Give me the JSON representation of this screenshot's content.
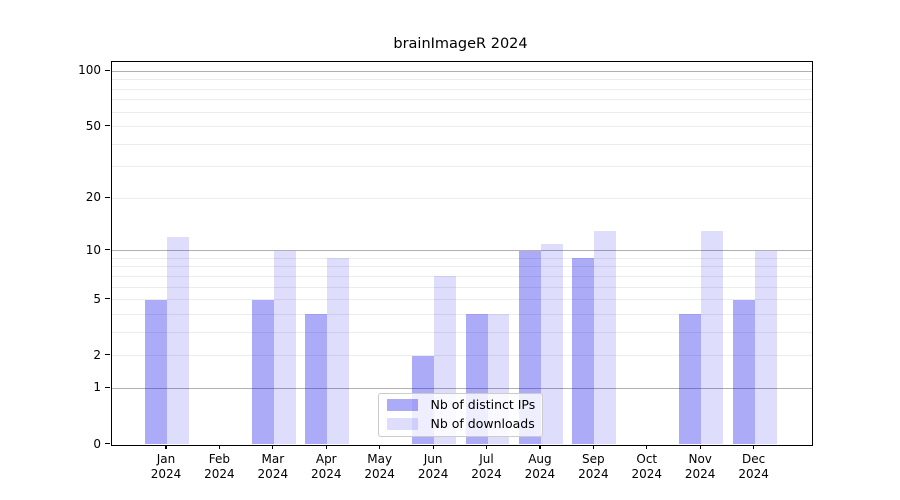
{
  "title": "brainImageR 2024",
  "chart_data": {
    "type": "bar",
    "title": "brainImageR 2024",
    "scale": "log1p",
    "categories": [
      "Jan",
      "Feb",
      "Mar",
      "Apr",
      "May",
      "Jun",
      "Jul",
      "Aug",
      "Sep",
      "Oct",
      "Nov",
      "Dec"
    ],
    "year_label": "2024",
    "series": [
      {
        "name": "Nb of distinct IPs",
        "values": [
          5,
          0,
          5,
          4,
          0,
          2,
          4,
          10,
          9,
          0,
          4,
          5
        ]
      },
      {
        "name": "Nb of downloads",
        "values": [
          12,
          0,
          10,
          9,
          0,
          7,
          4,
          11,
          13,
          0,
          13,
          10
        ]
      }
    ],
    "xlabel": "",
    "ylabel": "",
    "y_ticks": [
      0,
      1,
      2,
      5,
      10,
      20,
      50,
      100
    ],
    "ylim": [
      0,
      113
    ],
    "grid": "on",
    "major_grid_values": [
      1,
      10,
      100
    ],
    "minor_grid_values": [
      2,
      3,
      4,
      5,
      6,
      7,
      8,
      9,
      20,
      30,
      40,
      50,
      60,
      70,
      80,
      90
    ],
    "legend_position": "lower center"
  },
  "colors": {
    "bar_ips": "#0a0aeb57",
    "bar_downloads": "#0a0aeb22",
    "bar_ips_flat": "#aaaaf8",
    "bar_downloads_flat": "#dcdcfa",
    "major_gridline": "#b0b0b0",
    "minor_gridline": "#ececec",
    "axis_spine": "#000000",
    "text": "#000000",
    "legend_border": "#cccccc"
  }
}
